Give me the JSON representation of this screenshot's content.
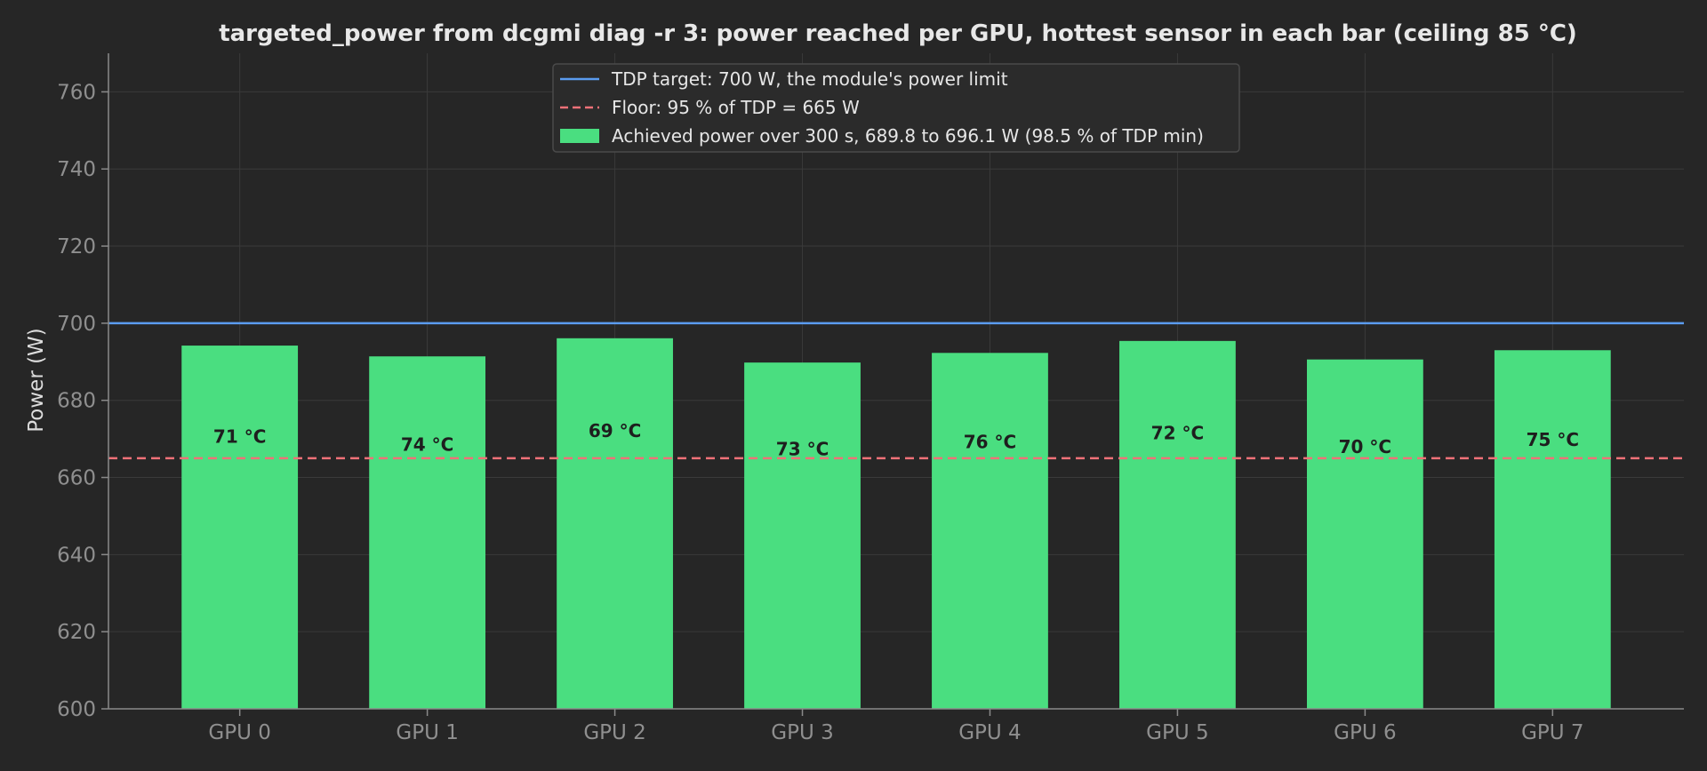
{
  "chart_data": {
    "type": "bar",
    "title": "targeted_power from dcgmi diag -r 3: power reached per GPU, hottest sensor in each bar (ceiling 85 °C)",
    "xlabel": "",
    "ylabel": "Power (W)",
    "ylim": [
      600,
      770
    ],
    "yticks": [
      600,
      620,
      640,
      660,
      680,
      700,
      720,
      740,
      760
    ],
    "grid": true,
    "legend_position": "upper center",
    "categories": [
      "GPU 0",
      "GPU 1",
      "GPU 2",
      "GPU 3",
      "GPU 4",
      "GPU 5",
      "GPU 6",
      "GPU 7"
    ],
    "series": [
      {
        "name": "Achieved power over 300 s, 689.8 to 696.1 W (98.5 % of TDP min)",
        "color": "#4ade80",
        "values": [
          694.2,
          691.4,
          696.1,
          689.8,
          692.3,
          695.4,
          690.6,
          693.0
        ],
        "labels": [
          "71 °C",
          "74 °C",
          "69 °C",
          "73 °C",
          "76 °C",
          "72 °C",
          "70 °C",
          "75 °C"
        ]
      }
    ],
    "reference_lines": [
      {
        "name": "TDP target: 700 W, the module's power limit",
        "value": 700,
        "style": "solid",
        "color": "#5b9cf0"
      },
      {
        "name": "Floor: 95 % of TDP = 665 W",
        "value": 665,
        "style": "dashed",
        "color": "#f07178"
      }
    ],
    "colors": {
      "background": "#262626",
      "axis": "#8a8a8a",
      "grid": "#3a3a3a",
      "legend_bg": "#2b2b2b",
      "legend_border": "#4a4a4a"
    }
  }
}
